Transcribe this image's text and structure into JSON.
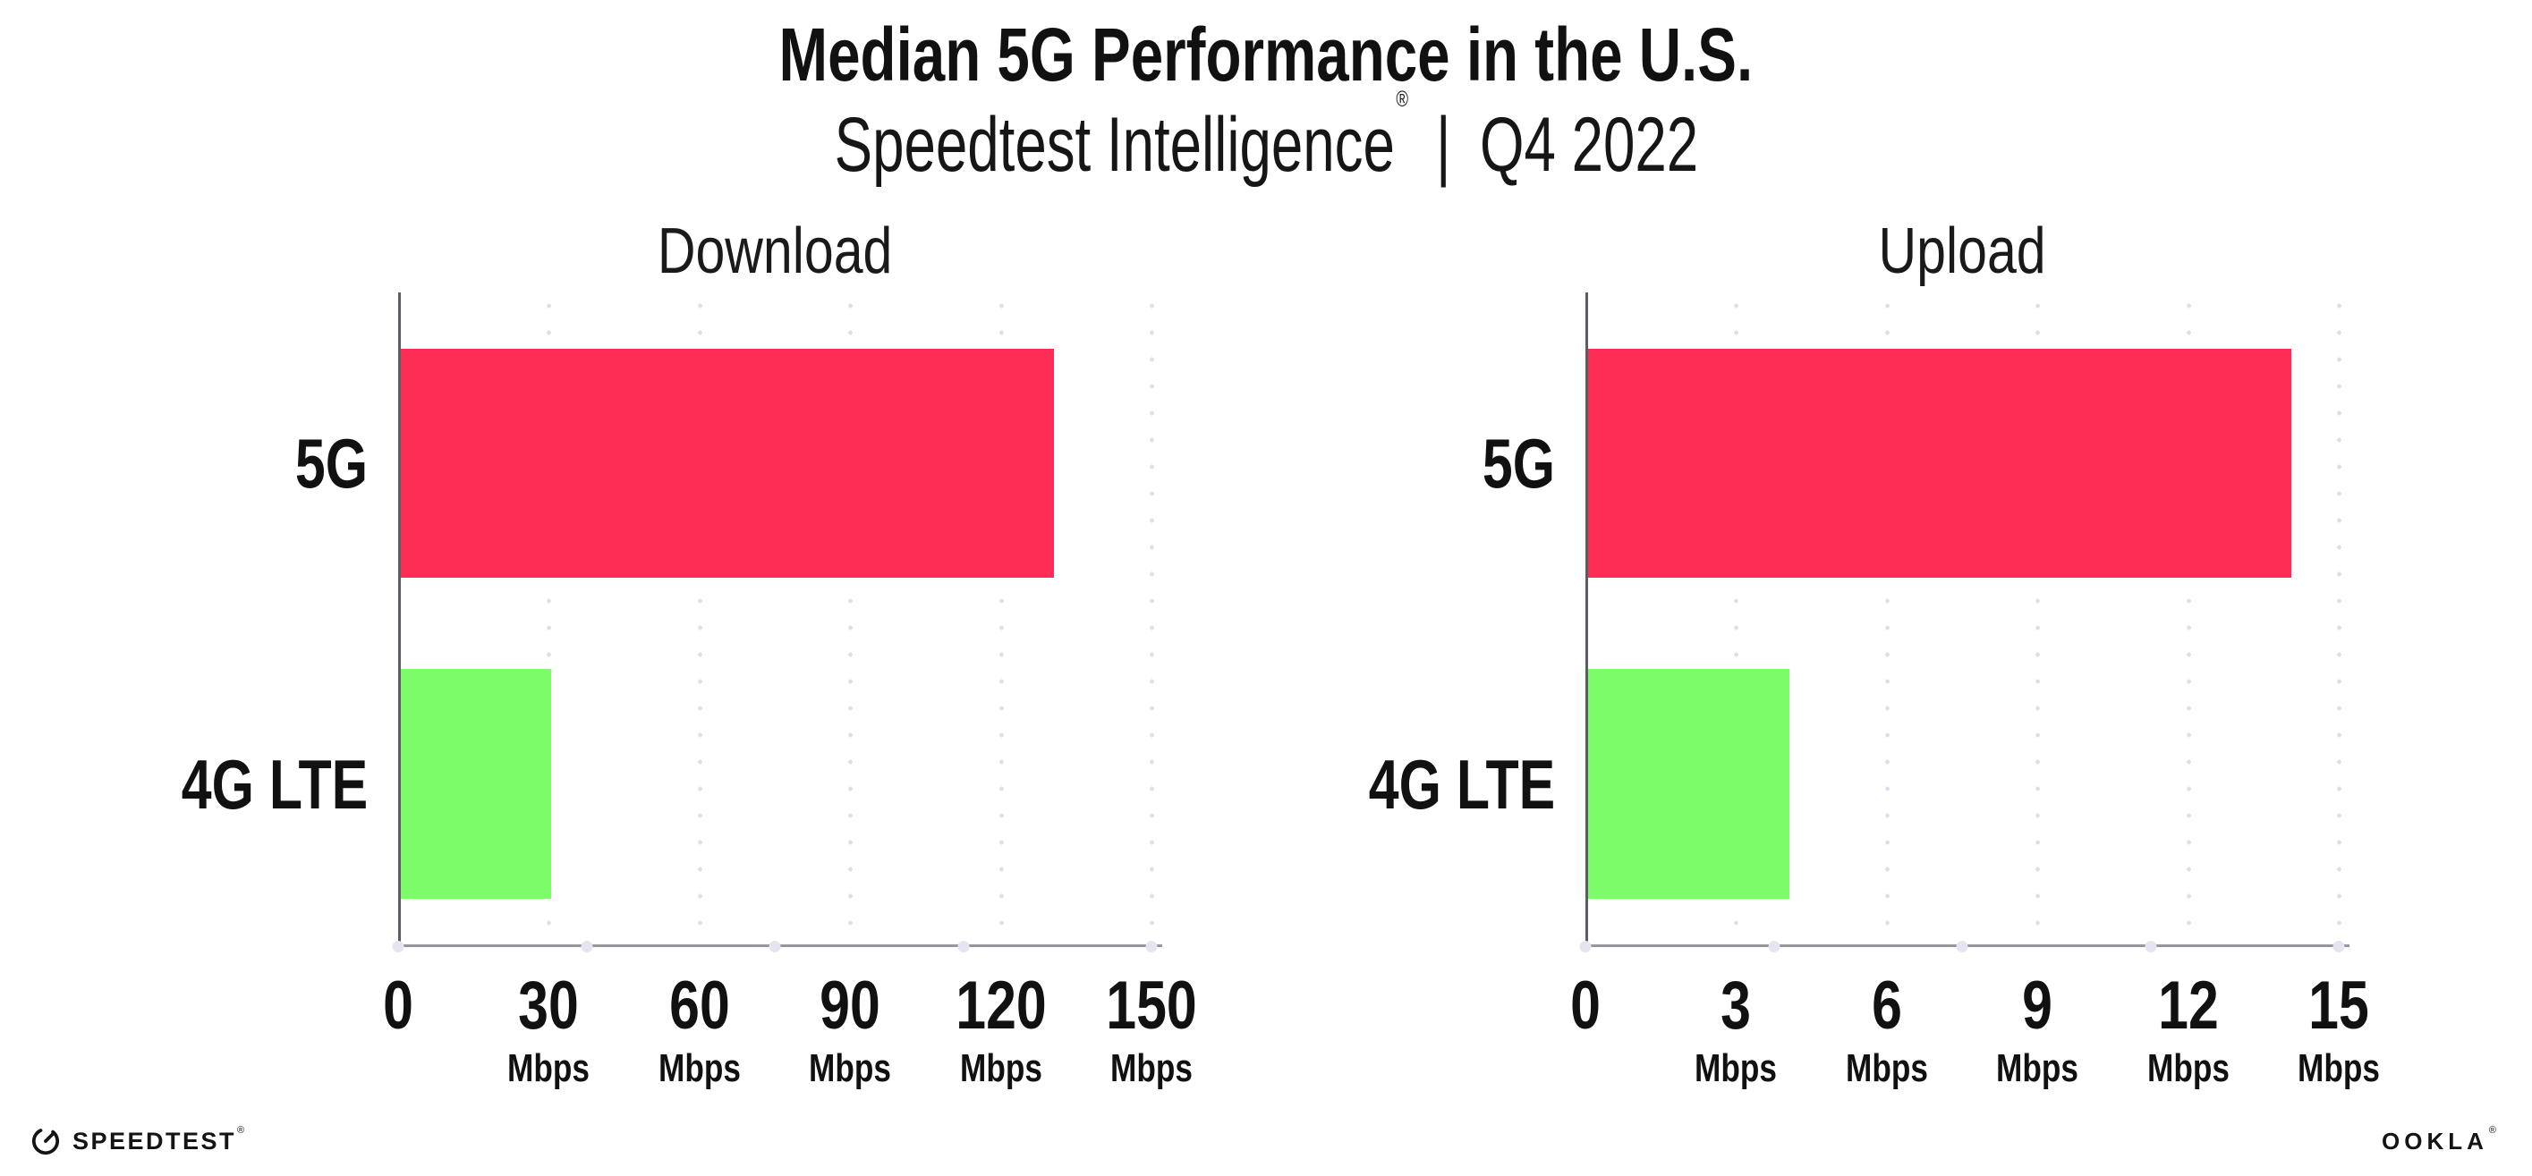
{
  "header": {
    "title": "Median 5G Performance in the U.S.",
    "subtitle": {
      "brand": "Speedtest Intelligence",
      "registered": "®",
      "separator": "|",
      "period": "Q4 2022"
    }
  },
  "chart_data": [
    {
      "type": "bar",
      "orientation": "horizontal",
      "title": "Download",
      "categories": [
        "5G",
        "4G LTE"
      ],
      "values": [
        130,
        30
      ],
      "unit": "Mbps",
      "xlim": [
        0,
        150
      ],
      "xticks": [
        0,
        30,
        60,
        90,
        120,
        150
      ],
      "tick_unit_label": "Mbps",
      "bar_colors": [
        "#FD2D55",
        "#7DFC69"
      ],
      "grid": "dotted-vertical-at-major-ticks",
      "legend": "none"
    },
    {
      "type": "bar",
      "orientation": "horizontal",
      "title": "Upload",
      "categories": [
        "5G",
        "4G LTE"
      ],
      "values": [
        14,
        4
      ],
      "unit": "Mbps",
      "xlim": [
        0,
        15
      ],
      "xticks": [
        0,
        3,
        6,
        9,
        12,
        15
      ],
      "tick_unit_label": "Mbps",
      "bar_colors": [
        "#FD2D55",
        "#7DFC69"
      ],
      "grid": "dotted-vertical-at-major-ticks",
      "legend": "none"
    }
  ],
  "footer": {
    "speedtest": {
      "label": "SPEEDTEST",
      "registered": "®",
      "icon": "gauge-icon"
    },
    "ookla": {
      "label": "OOKLA",
      "registered": "®"
    }
  },
  "colors": {
    "bar_5g": "#FD2D55",
    "bar_4g_lte": "#7DFC69",
    "gridline": "#dfdfe9",
    "axis_x": "#96969b",
    "axis_y": "#5c5c63",
    "axis_tick_dot": "#e3e6f1",
    "text": "#111111",
    "background": "#ffffff"
  }
}
